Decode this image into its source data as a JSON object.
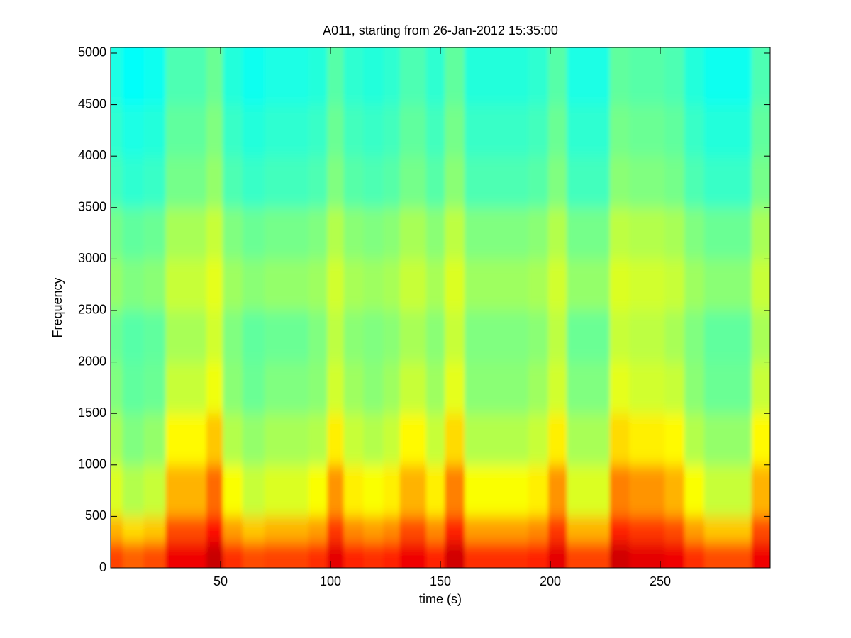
{
  "chart_data": {
    "type": "spectrogram",
    "title": "A011, starting from 26-Jan-2012 15:35:00",
    "xlabel": "time (s)",
    "ylabel": "Frequency",
    "xlim": [
      0,
      300
    ],
    "ylim": [
      0,
      5055
    ],
    "xticks": [
      50,
      100,
      150,
      200,
      250
    ],
    "yticks": [
      0,
      500,
      1000,
      1500,
      2000,
      2500,
      3000,
      3500,
      4000,
      4500,
      5000
    ],
    "colormap": "jet",
    "clim": [
      0,
      100
    ],
    "x": [
      1,
      10,
      20,
      30,
      40,
      47,
      55,
      65,
      75,
      85,
      95,
      102,
      110,
      120,
      128,
      135,
      140,
      147,
      157,
      165,
      175,
      185,
      195,
      203,
      212,
      222,
      232,
      240,
      247,
      257,
      265,
      275,
      285,
      298
    ],
    "y": [
      0,
      250,
      500,
      1000,
      1500,
      2000,
      2500,
      3000,
      3500,
      4000,
      4500,
      5000
    ],
    "values": [
      [
        81,
        78,
        80,
        89,
        89,
        93,
        83,
        80,
        81,
        81,
        83,
        90,
        84,
        83,
        84,
        89,
        89,
        84,
        92,
        83,
        83,
        83,
        84,
        90,
        81,
        81,
        92,
        90,
        90,
        89,
        83,
        80,
        80,
        89
      ],
      [
        70,
        66,
        68,
        80,
        80,
        86,
        72,
        68,
        70,
        70,
        72,
        82,
        74,
        72,
        74,
        80,
        80,
        74,
        84,
        72,
        72,
        72,
        74,
        82,
        70,
        70,
        84,
        82,
        82,
        80,
        72,
        68,
        68,
        80
      ],
      [
        59,
        55,
        57,
        70,
        70,
        77,
        62,
        57,
        59,
        59,
        62,
        73,
        64,
        62,
        64,
        70,
        70,
        64,
        75,
        62,
        62,
        62,
        64,
        73,
        59,
        59,
        75,
        73,
        73,
        70,
        62,
        57,
        57,
        70
      ],
      [
        54,
        50,
        52,
        63,
        63,
        68,
        55,
        52,
        54,
        54,
        55,
        64,
        57,
        55,
        57,
        63,
        63,
        57,
        66,
        55,
        55,
        55,
        57,
        64,
        54,
        54,
        66,
        64,
        64,
        63,
        55,
        52,
        52,
        63
      ],
      [
        50,
        47,
        48,
        57,
        57,
        61,
        51,
        48,
        50,
        50,
        51,
        58,
        53,
        51,
        53,
        57,
        57,
        53,
        60,
        51,
        51,
        51,
        53,
        58,
        50,
        50,
        60,
        58,
        58,
        57,
        51,
        48,
        48,
        57
      ],
      [
        48,
        46,
        47,
        54,
        54,
        58,
        50,
        47,
        48,
        48,
        50,
        56,
        51,
        50,
        51,
        54,
        54,
        51,
        57,
        50,
        50,
        50,
        51,
        56,
        48,
        48,
        57,
        56,
        56,
        54,
        50,
        47,
        47,
        54
      ],
      [
        52,
        50,
        51,
        57,
        57,
        60,
        53,
        51,
        52,
        52,
        53,
        58,
        54,
        53,
        54,
        57,
        57,
        54,
        59,
        53,
        53,
        53,
        54,
        58,
        52,
        52,
        59,
        58,
        58,
        57,
        53,
        51,
        51,
        57
      ],
      [
        49,
        47,
        48,
        54,
        54,
        57,
        50,
        48,
        49,
        49,
        50,
        55,
        51,
        50,
        51,
        54,
        54,
        51,
        56,
        50,
        50,
        50,
        51,
        55,
        49,
        49,
        56,
        55,
        55,
        54,
        50,
        48,
        48,
        54
      ],
      [
        44,
        42,
        43,
        49,
        49,
        52,
        45,
        43,
        44,
        44,
        45,
        50,
        46,
        45,
        46,
        49,
        49,
        46,
        51,
        45,
        45,
        45,
        46,
        50,
        44,
        44,
        51,
        50,
        50,
        49,
        45,
        43,
        43,
        49
      ],
      [
        42,
        40,
        41,
        47,
        47,
        50,
        43,
        41,
        42,
        42,
        43,
        48,
        44,
        43,
        44,
        47,
        47,
        44,
        49,
        43,
        43,
        43,
        44,
        48,
        42,
        42,
        49,
        48,
        48,
        47,
        43,
        41,
        41,
        47
      ],
      [
        40,
        38,
        39,
        45,
        45,
        48,
        41,
        39,
        40,
        40,
        41,
        46,
        42,
        41,
        42,
        45,
        45,
        42,
        47,
        41,
        41,
        41,
        42,
        46,
        40,
        40,
        47,
        46,
        46,
        45,
        41,
        39,
        39,
        45
      ],
      [
        40,
        38,
        39,
        45,
        45,
        48,
        41,
        39,
        40,
        40,
        41,
        46,
        42,
        41,
        42,
        45,
        45,
        42,
        47,
        41,
        41,
        41,
        42,
        46,
        40,
        40,
        47,
        46,
        46,
        45,
        41,
        39,
        39,
        45
      ]
    ]
  }
}
